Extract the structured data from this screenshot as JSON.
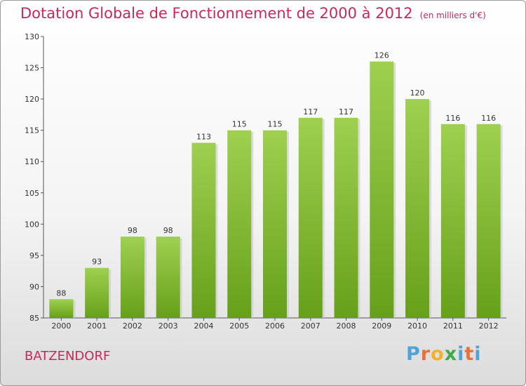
{
  "header": {
    "title": "Dotation Globale de Fonctionnement de 2000 à 2012",
    "subtitle": "(en milliers d'€)"
  },
  "footer": {
    "commune": "BATZENDORF",
    "logo": [
      "P",
      "r",
      "o",
      "x",
      "i",
      "t",
      "i"
    ]
  },
  "colors": {
    "title": "#c8285a",
    "bar_top": "#9fd050",
    "bar_bottom": "#66a01a",
    "logo": [
      "#4fa3d8",
      "#e8703a",
      "#f0b030",
      "#3faa4a",
      "#4fa3d8",
      "#e8703a",
      "#4fa3d8"
    ]
  },
  "chart_data": {
    "type": "bar",
    "categories": [
      "2000",
      "2001",
      "2002",
      "2003",
      "2004",
      "2005",
      "2006",
      "2007",
      "2008",
      "2009",
      "2010",
      "2011",
      "2012"
    ],
    "values": [
      88,
      93,
      98,
      98,
      113,
      115,
      115,
      117,
      117,
      126,
      120,
      116,
      116
    ],
    "value_labels": [
      "88",
      "93",
      "98",
      "98",
      "113",
      "115",
      "115",
      "117",
      "117",
      "126",
      "120",
      "116",
      "116"
    ],
    "ylim": [
      85,
      130
    ],
    "yticks": [
      85,
      90,
      95,
      100,
      105,
      110,
      115,
      120,
      125,
      130
    ],
    "ytick_labels": [
      "85",
      "90",
      "95",
      "100",
      "105",
      "110",
      "115",
      "120",
      "125",
      "130"
    ],
    "grid": false,
    "legend": "none"
  }
}
